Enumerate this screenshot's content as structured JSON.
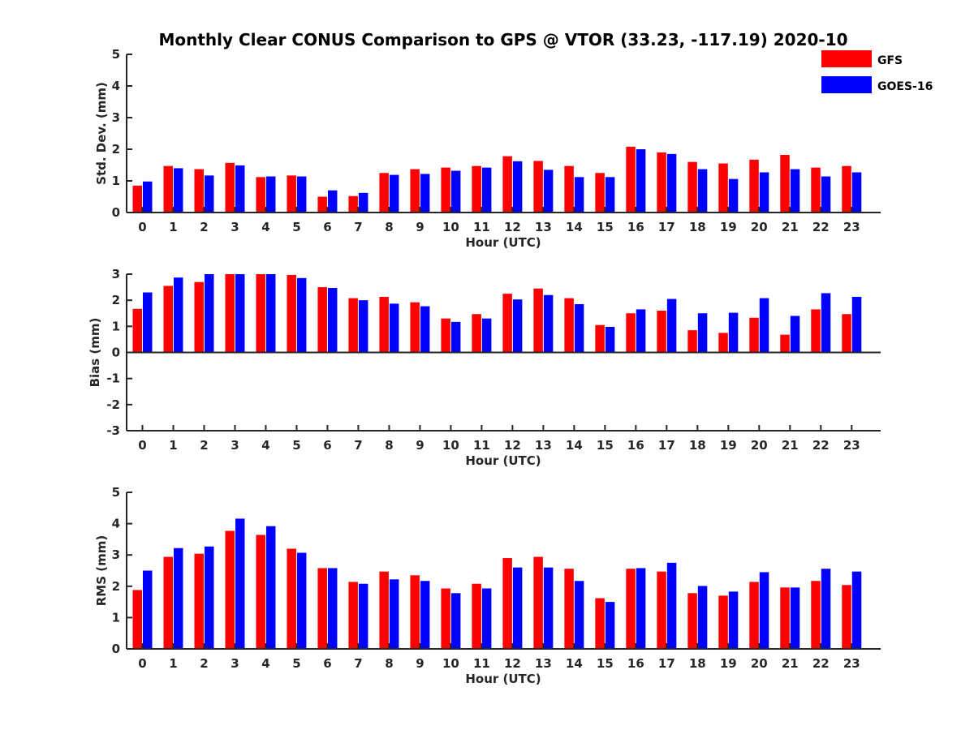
{
  "title": "Monthly Clear CONUS Comparison to GPS @ VTOR (33.23, -117.19) 2020-10",
  "legend": [
    {
      "name": "GFS",
      "color": "#ff0000"
    },
    {
      "name": "GOES-16",
      "color": "#0000ff"
    }
  ],
  "chart_data": [
    {
      "type": "bar",
      "xlabel": "Hour (UTC)",
      "ylabel": "Std. Dev. (mm)",
      "ylim": [
        0,
        5
      ],
      "yticks": [
        0,
        1,
        2,
        3,
        4,
        5
      ],
      "categories": [
        "0",
        "1",
        "2",
        "3",
        "4",
        "5",
        "6",
        "7",
        "8",
        "9",
        "10",
        "11",
        "12",
        "13",
        "14",
        "15",
        "16",
        "17",
        "18",
        "19",
        "20",
        "21",
        "22",
        "23"
      ],
      "series": [
        {
          "name": "GFS",
          "values": [
            0.85,
            1.47,
            1.37,
            1.57,
            1.12,
            1.17,
            0.5,
            0.52,
            1.25,
            1.37,
            1.42,
            1.47,
            1.78,
            1.63,
            1.47,
            1.25,
            2.08,
            1.9,
            1.6,
            1.55,
            1.67,
            1.82,
            1.42,
            1.47
          ]
        },
        {
          "name": "GOES-16",
          "values": [
            0.98,
            1.4,
            1.17,
            1.49,
            1.14,
            1.14,
            0.7,
            0.62,
            1.19,
            1.22,
            1.32,
            1.42,
            1.62,
            1.35,
            1.12,
            1.12,
            2.0,
            1.85,
            1.37,
            1.06,
            1.27,
            1.37,
            1.14,
            1.27
          ]
        }
      ]
    },
    {
      "type": "bar",
      "xlabel": "Hour (UTC)",
      "ylabel": "Bias (mm)",
      "ylim": [
        -3,
        3
      ],
      "yticks": [
        -3,
        -2,
        -1,
        0,
        1,
        2,
        3
      ],
      "categories": [
        "0",
        "1",
        "2",
        "3",
        "4",
        "5",
        "6",
        "7",
        "8",
        "9",
        "10",
        "11",
        "12",
        "13",
        "14",
        "15",
        "16",
        "17",
        "18",
        "19",
        "20",
        "21",
        "22",
        "23"
      ],
      "series": [
        {
          "name": "GFS",
          "values": [
            1.67,
            2.55,
            2.7,
            3.0,
            3.0,
            2.97,
            2.5,
            2.08,
            2.13,
            1.92,
            1.3,
            1.47,
            2.25,
            2.45,
            2.08,
            1.05,
            1.5,
            1.6,
            0.85,
            0.75,
            1.33,
            0.68,
            1.65,
            1.47
          ]
        },
        {
          "name": "GOES-16",
          "values": [
            2.3,
            2.87,
            3.0,
            3.0,
            3.0,
            2.85,
            2.47,
            2.0,
            1.87,
            1.77,
            1.17,
            1.3,
            2.03,
            2.2,
            1.85,
            0.98,
            1.65,
            2.05,
            1.5,
            1.52,
            2.08,
            1.4,
            2.27,
            2.13
          ]
        }
      ]
    },
    {
      "type": "bar",
      "xlabel": "Hour (UTC)",
      "ylabel": "RMS (mm)",
      "ylim": [
        0,
        5
      ],
      "yticks": [
        0,
        1,
        2,
        3,
        4,
        5
      ],
      "categories": [
        "0",
        "1",
        "2",
        "3",
        "4",
        "5",
        "6",
        "7",
        "8",
        "9",
        "10",
        "11",
        "12",
        "13",
        "14",
        "15",
        "16",
        "17",
        "18",
        "19",
        "20",
        "21",
        "22",
        "23"
      ],
      "series": [
        {
          "name": "GFS",
          "values": [
            1.88,
            2.94,
            3.04,
            3.77,
            3.64,
            3.2,
            2.58,
            2.14,
            2.47,
            2.35,
            1.93,
            2.08,
            2.9,
            2.94,
            2.56,
            1.62,
            2.56,
            2.47,
            1.78,
            1.7,
            2.14,
            1.96,
            2.17,
            2.04
          ]
        },
        {
          "name": "GOES-16",
          "values": [
            2.5,
            3.22,
            3.27,
            4.16,
            3.92,
            3.07,
            2.58,
            2.08,
            2.22,
            2.17,
            1.78,
            1.93,
            2.6,
            2.6,
            2.17,
            1.5,
            2.58,
            2.75,
            2.01,
            1.83,
            2.45,
            1.96,
            2.56,
            2.47
          ]
        }
      ]
    }
  ]
}
